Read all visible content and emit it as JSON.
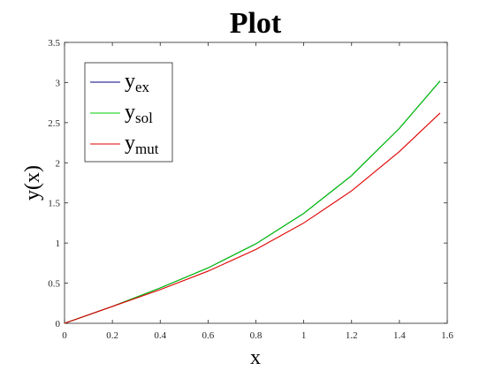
{
  "chart_data": {
    "type": "line",
    "title": "Plot",
    "xlabel": "x",
    "ylabel": "y(x)",
    "xlim": [
      0,
      1.6
    ],
    "ylim": [
      0,
      3.5
    ],
    "xticks": [
      0,
      0.2,
      0.4,
      0.6,
      0.8,
      1,
      1.2,
      1.4,
      1.6
    ],
    "xtick_labels": [
      "0",
      "0.2",
      "0.4",
      "0.6",
      "0.8",
      "1",
      "1.2",
      "1.4",
      "1.6"
    ],
    "yticks": [
      0,
      0.5,
      1,
      1.5,
      2,
      2.5,
      3,
      3.5
    ],
    "ytick_labels": [
      "0",
      "0.5",
      "1",
      "1.5",
      "2",
      "2.5",
      "3",
      "3.5"
    ],
    "grid": false,
    "legend_position": "top-left",
    "series": [
      {
        "name": "y",
        "name_sub": "ex",
        "color": "#000080",
        "x": [
          0,
          0.2,
          0.4,
          0.6,
          0.8,
          1.0,
          1.2,
          1.4,
          1.57
        ],
        "y": [
          0,
          0.21,
          0.44,
          0.69,
          0.99,
          1.37,
          1.84,
          2.43,
          3.02
        ]
      },
      {
        "name": "y",
        "name_sub": "sol",
        "color": "#00cc00",
        "x": [
          0,
          0.2,
          0.4,
          0.6,
          0.8,
          1.0,
          1.2,
          1.4,
          1.57
        ],
        "y": [
          0,
          0.21,
          0.44,
          0.69,
          0.99,
          1.37,
          1.84,
          2.43,
          3.02
        ]
      },
      {
        "name": "y",
        "name_sub": "mut",
        "color": "#e00000",
        "x": [
          0,
          0.2,
          0.4,
          0.6,
          0.8,
          1.0,
          1.2,
          1.4,
          1.57
        ],
        "y": [
          0,
          0.21,
          0.42,
          0.65,
          0.92,
          1.25,
          1.65,
          2.14,
          2.62
        ]
      }
    ]
  }
}
